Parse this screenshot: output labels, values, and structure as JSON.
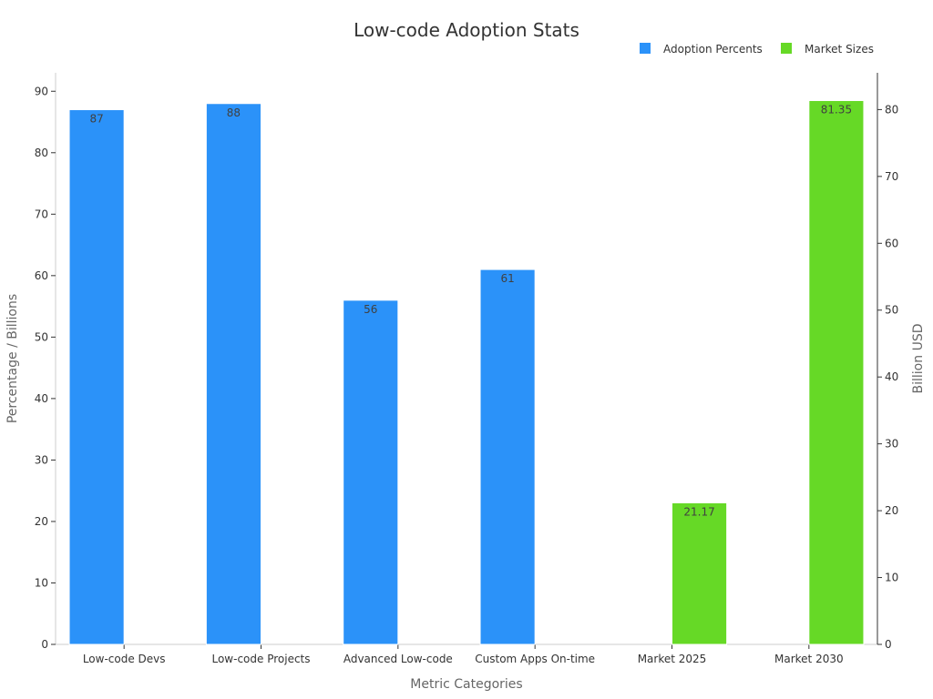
{
  "chart_data": {
    "type": "bar",
    "title": "Low-code Adoption Stats",
    "xlabel": "Metric Categories",
    "ylabel": "Percentage / Billions",
    "y2label": "Billion USD",
    "categories": [
      "Low-code Devs",
      "Low-code Projects",
      "Advanced Low-code",
      "Custom Apps On-time",
      "Market 2025",
      "Market 2030"
    ],
    "ylim": [
      0,
      93
    ],
    "y2lim": [
      0,
      85.5
    ],
    "yticks": [
      0,
      10,
      20,
      30,
      40,
      50,
      60,
      70,
      80,
      90
    ],
    "y2ticks": [
      0,
      10,
      20,
      30,
      40,
      50,
      60,
      70,
      80
    ],
    "legend_position": "top-right",
    "grid": false,
    "series": [
      {
        "name": "Adoption Percents",
        "color": "#2b92f9",
        "axis": "left",
        "values": [
          87,
          88,
          56,
          61,
          null,
          null
        ],
        "labels": [
          "87",
          "88",
          "56",
          "61",
          "",
          ""
        ]
      },
      {
        "name": "Market Sizes",
        "color": "#66d926",
        "axis": "right",
        "values": [
          null,
          null,
          null,
          null,
          21.17,
          81.35
        ],
        "labels": [
          "",
          "",
          "",
          "",
          "21.17",
          "81.35"
        ]
      }
    ]
  }
}
